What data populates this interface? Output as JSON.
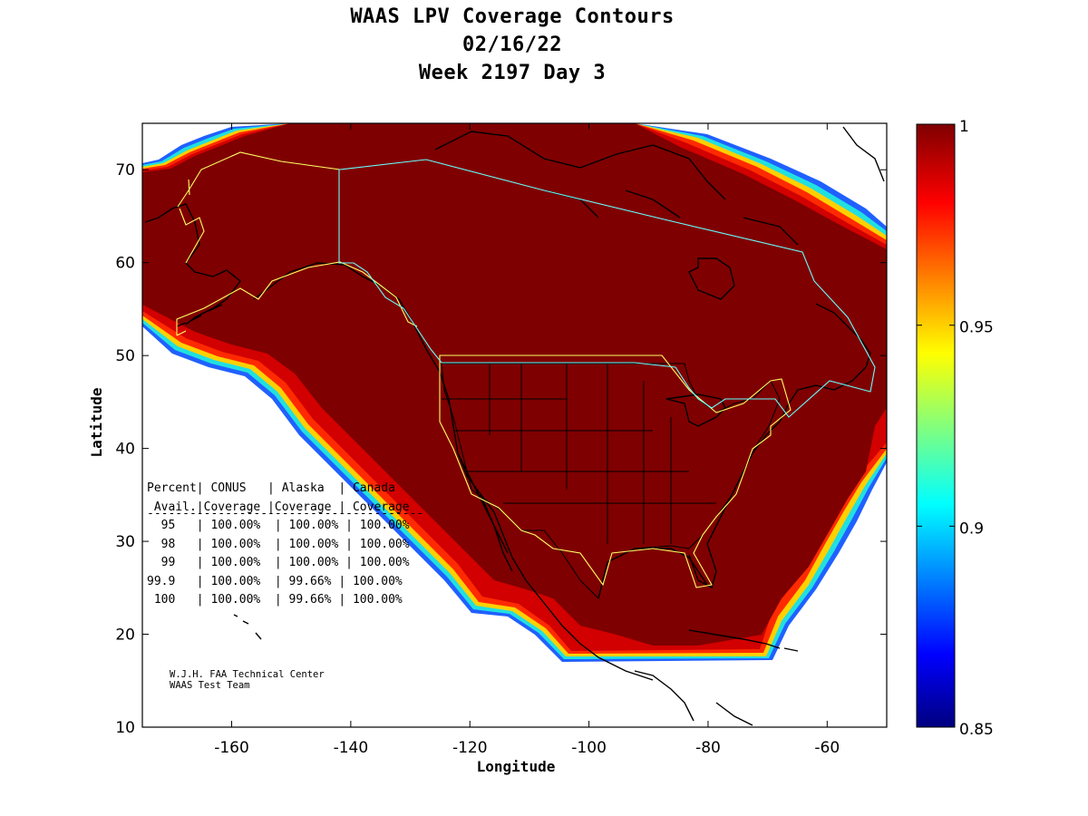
{
  "title": {
    "line1": "WAAS LPV Coverage Contours",
    "line2": "02/16/22",
    "line3": "Week 2197 Day 3"
  },
  "axes": {
    "xlabel": "Longitude",
    "ylabel": "Latitude",
    "xlim": [
      -175,
      -50
    ],
    "ylim": [
      10,
      75
    ],
    "xticks": [
      -160,
      -140,
      -120,
      -100,
      -80,
      -60
    ],
    "yticks": [
      10,
      20,
      30,
      40,
      50,
      60,
      70
    ]
  },
  "colorbar": {
    "range": [
      0.85,
      1
    ],
    "ticks": [
      "1",
      "0.95",
      "0.9",
      "0.85"
    ],
    "tick_values": [
      1,
      0.95,
      0.9,
      0.85
    ]
  },
  "stats_table": {
    "header1": "Percent| CONUS   | Alaska  | Canada",
    "header2": " Avail.|Coverage |Coverage | Coverage",
    "rule": "---------------------------------------",
    "rows": [
      "  95   | 100.00%  | 100.00% | 100.00%",
      "  98   | 100.00%  | 100.00% | 100.00%",
      "  99   | 100.00%  | 100.00% | 100.00%",
      "99.9   | 100.00%  | 99.66% | 100.00%",
      " 100   | 100.00%  | 99.66% | 100.00%"
    ]
  },
  "credit": {
    "line1": "W.J.H. FAA Technical Center",
    "line2": "WAAS Test Team"
  },
  "colors": {
    "coverage_full": "#7f0000",
    "service_boundary_conus": "#ffff66",
    "service_boundary_canada": "#66ffff",
    "coastline": "#000000"
  }
}
